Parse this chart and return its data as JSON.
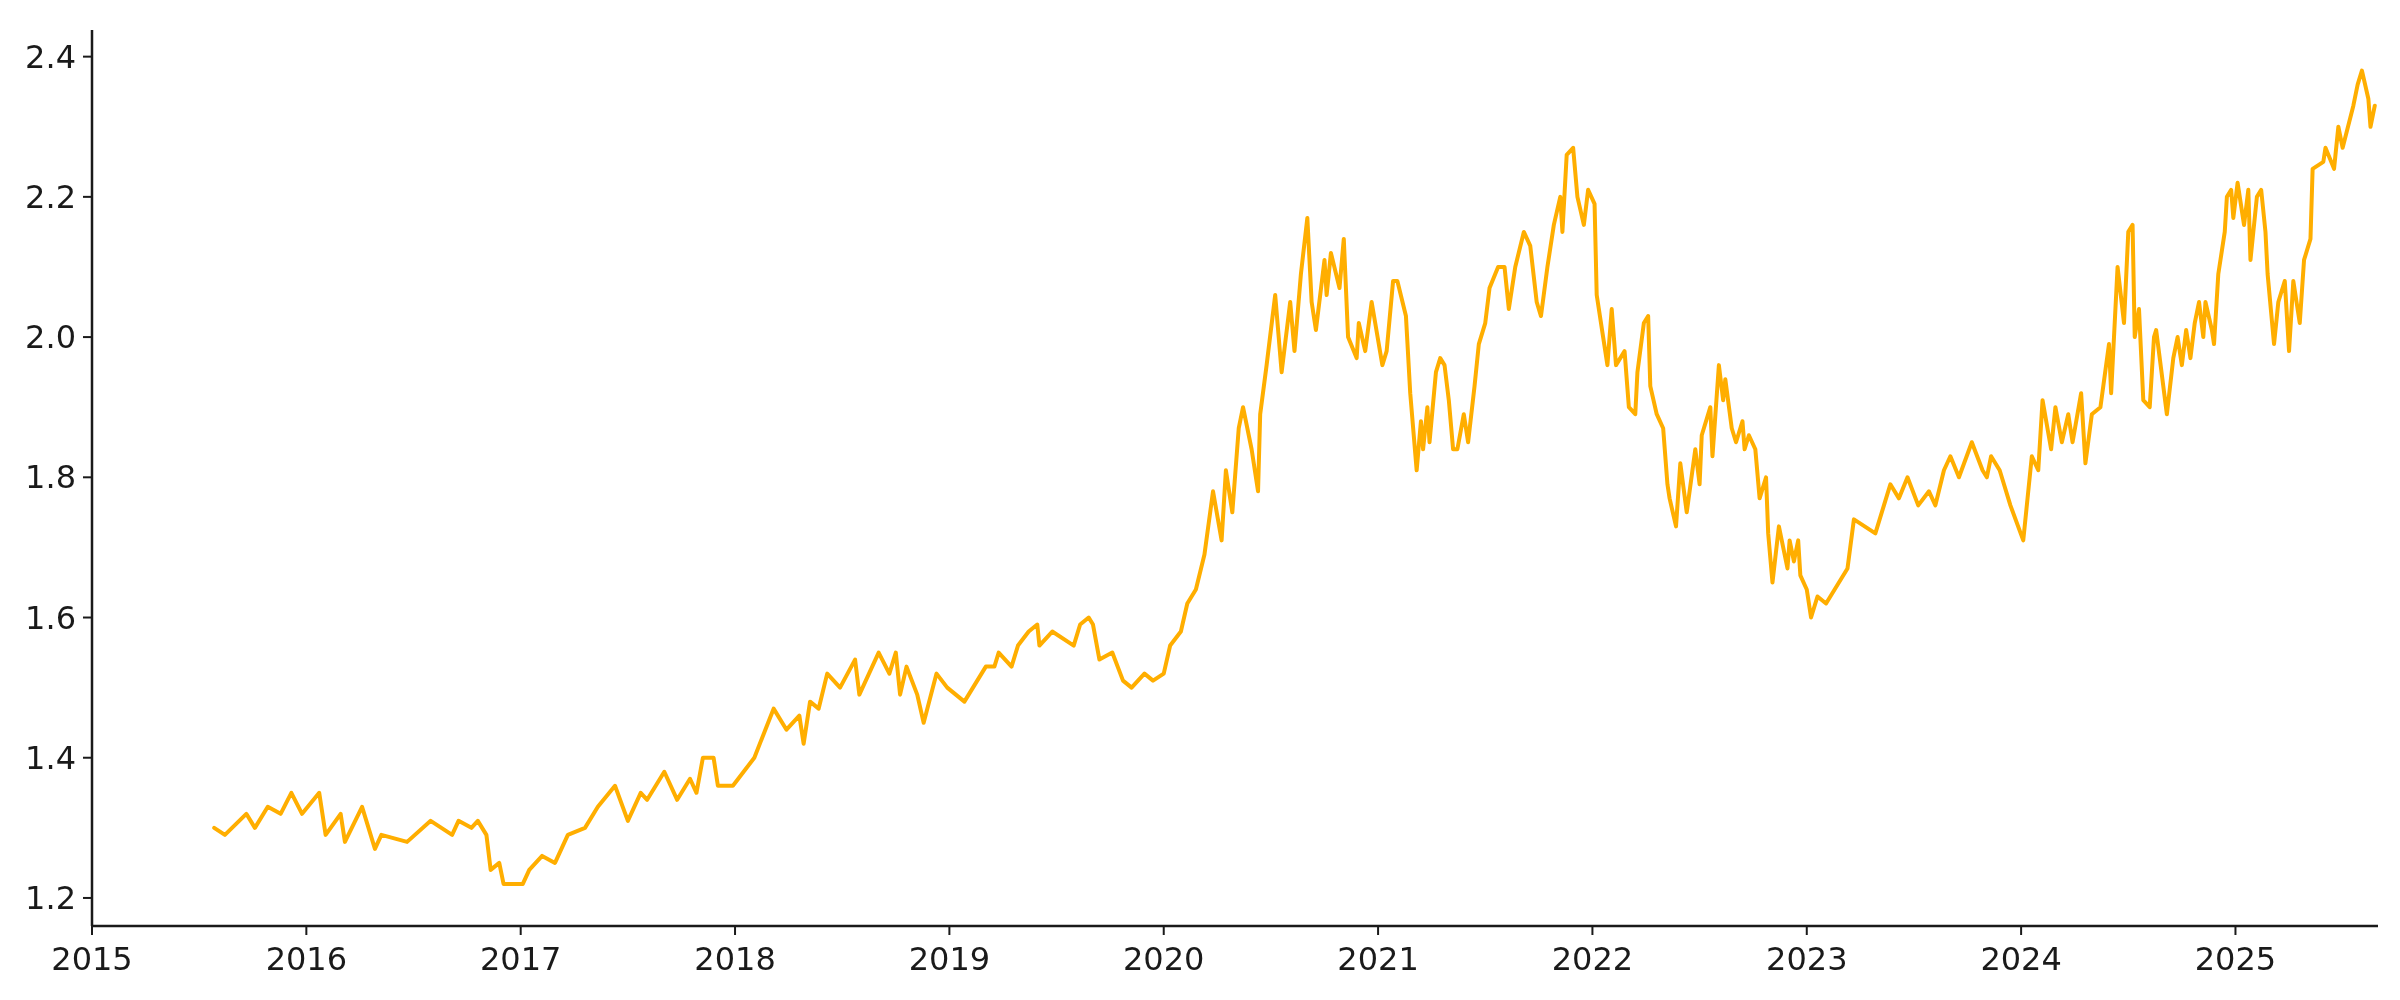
{
  "chart_data": {
    "type": "line",
    "xlim": [
      2015,
      2025.665
    ],
    "xticks": [
      2015,
      2016,
      2017,
      2018,
      2019,
      2020,
      2021,
      2022,
      2023,
      2024,
      2025
    ],
    "ylim": [
      1.16,
      2.438
    ],
    "yticks": [
      {
        "value": 1.2,
        "label": "1.2"
      },
      {
        "value": 1.4,
        "label": "1.4"
      },
      {
        "value": 1.6,
        "label": "1.6"
      },
      {
        "value": 1.8,
        "label": "1.8"
      },
      {
        "value": 2.0,
        "label": "2.0"
      },
      {
        "value": 2.2,
        "label": "2.2"
      },
      {
        "value": 2.4,
        "label": "2.4"
      }
    ],
    "grid": false,
    "marker": "none",
    "line_style": "solid",
    "series": [
      {
        "color": "#ffae00",
        "x": [
          2015.57,
          2015.62,
          2015.72,
          2015.76,
          2015.82,
          2015.88,
          2015.93,
          2015.98,
          2016.06,
          2016.09,
          2016.16,
          2016.18,
          2016.26,
          2016.32,
          2016.35,
          2016.47,
          2016.58,
          2016.68,
          2016.71,
          2016.77,
          2016.8,
          2016.84,
          2016.86,
          2016.9,
          2016.92,
          2017.01,
          2017.04,
          2017.1,
          2017.16,
          2017.22,
          2017.3,
          2017.36,
          2017.44,
          2017.5,
          2017.56,
          2017.59,
          2017.67,
          2017.73,
          2017.79,
          2017.82,
          2017.85,
          2017.9,
          2017.92,
          2017.99,
          2018.09,
          2018.18,
          2018.24,
          2018.3,
          2018.32,
          2018.35,
          2018.39,
          2018.43,
          2018.49,
          2018.56,
          2018.58,
          2018.67,
          2018.72,
          2018.75,
          2018.77,
          2018.8,
          2018.85,
          2018.88,
          2018.94,
          2018.99,
          2019.07,
          2019.11,
          2019.17,
          2019.21,
          2019.23,
          2019.29,
          2019.32,
          2019.37,
          2019.41,
          2019.42,
          2019.48,
          2019.58,
          2019.61,
          2019.65,
          2019.67,
          2019.7,
          2019.76,
          2019.81,
          2019.85,
          2019.91,
          2019.95,
          2020.0,
          2020.03,
          2020.08,
          2020.11,
          2020.15,
          2020.19,
          2020.23,
          2020.27,
          2020.29,
          2020.32,
          2020.35,
          2020.37,
          2020.41,
          2020.44,
          2020.45,
          2020.48,
          2020.52,
          2020.55,
          2020.59,
          2020.61,
          2020.64,
          2020.67,
          2020.69,
          2020.71,
          2020.75,
          2020.76,
          2020.78,
          2020.82,
          2020.84,
          2020.86,
          2020.9,
          2020.91,
          2020.94,
          2020.97,
          2021.02,
          2021.04,
          2021.07,
          2021.09,
          2021.13,
          2021.15,
          2021.18,
          2021.2,
          2021.21,
          2021.23,
          2021.24,
          2021.27,
          2021.29,
          2021.31,
          2021.33,
          2021.35,
          2021.37,
          2021.4,
          2021.42,
          2021.45,
          2021.47,
          2021.5,
          2021.52,
          2021.56,
          2021.59,
          2021.61,
          2021.64,
          2021.68,
          2021.71,
          2021.74,
          2021.76,
          2021.79,
          2021.82,
          2021.85,
          2021.86,
          2021.88,
          2021.91,
          2021.93,
          2021.96,
          2021.98,
          2022.01,
          2022.02,
          2022.05,
          2022.07,
          2022.09,
          2022.11,
          2022.15,
          2022.17,
          2022.2,
          2022.21,
          2022.24,
          2022.26,
          2022.27,
          2022.3,
          2022.33,
          2022.35,
          2022.36,
          2022.39,
          2022.41,
          2022.44,
          2022.48,
          2022.5,
          2022.51,
          2022.55,
          2022.56,
          2022.59,
          2022.61,
          2022.62,
          2022.65,
          2022.67,
          2022.7,
          2022.71,
          2022.73,
          2022.76,
          2022.78,
          2022.81,
          2022.82,
          2022.84,
          2022.87,
          2022.91,
          2022.92,
          2022.94,
          2022.96,
          2022.97,
          2023.0,
          2023.02,
          2023.05,
          2023.09,
          2023.13,
          2023.19,
          2023.22,
          2023.27,
          2023.32,
          2023.36,
          2023.39,
          2023.43,
          2023.47,
          2023.52,
          2023.57,
          2023.6,
          2023.64,
          2023.67,
          2023.71,
          2023.77,
          2023.82,
          2023.84,
          2023.86,
          2023.9,
          2023.95,
          2024.01,
          2024.05,
          2024.08,
          2024.1,
          2024.14,
          2024.16,
          2024.19,
          2024.22,
          2024.24,
          2024.28,
          2024.3,
          2024.33,
          2024.37,
          2024.41,
          2024.42,
          2024.45,
          2024.48,
          2024.5,
          2024.52,
          2024.53,
          2024.55,
          2024.57,
          2024.6,
          2024.62,
          2024.63,
          2024.68,
          2024.71,
          2024.73,
          2024.75,
          2024.77,
          2024.79,
          2024.81,
          2024.83,
          2024.85,
          2024.86,
          2024.89,
          2024.9,
          2024.92,
          2024.95,
          2024.96,
          2024.98,
          2024.99,
          2025.01,
          2025.04,
          2025.06,
          2025.07,
          2025.1,
          2025.12,
          2025.14,
          2025.15,
          2025.18,
          2025.2,
          2025.23,
          2025.25,
          2025.27,
          2025.3,
          2025.32,
          2025.35,
          2025.36,
          2025.41,
          2025.42,
          2025.46,
          2025.48,
          2025.5,
          2025.55,
          2025.57,
          2025.59,
          2025.62,
          2025.63,
          2025.65
        ],
        "values": [
          1.3,
          1.29,
          1.32,
          1.3,
          1.33,
          1.32,
          1.35,
          1.32,
          1.35,
          1.29,
          1.32,
          1.28,
          1.33,
          1.27,
          1.29,
          1.28,
          1.31,
          1.29,
          1.31,
          1.3,
          1.31,
          1.29,
          1.24,
          1.25,
          1.22,
          1.22,
          1.24,
          1.26,
          1.25,
          1.29,
          1.3,
          1.33,
          1.36,
          1.31,
          1.35,
          1.34,
          1.38,
          1.34,
          1.37,
          1.35,
          1.4,
          1.4,
          1.36,
          1.36,
          1.4,
          1.47,
          1.44,
          1.46,
          1.42,
          1.48,
          1.47,
          1.52,
          1.5,
          1.54,
          1.49,
          1.55,
          1.52,
          1.55,
          1.49,
          1.53,
          1.49,
          1.45,
          1.52,
          1.5,
          1.48,
          1.5,
          1.53,
          1.53,
          1.55,
          1.53,
          1.56,
          1.58,
          1.59,
          1.56,
          1.58,
          1.56,
          1.59,
          1.6,
          1.59,
          1.54,
          1.55,
          1.51,
          1.5,
          1.52,
          1.51,
          1.52,
          1.56,
          1.58,
          1.62,
          1.64,
          1.69,
          1.78,
          1.71,
          1.81,
          1.75,
          1.87,
          1.9,
          1.84,
          1.78,
          1.89,
          1.96,
          2.06,
          1.95,
          2.05,
          1.98,
          2.09,
          2.17,
          2.05,
          2.01,
          2.11,
          2.06,
          2.12,
          2.07,
          2.14,
          2.0,
          1.97,
          2.02,
          1.98,
          2.05,
          1.96,
          1.98,
          2.08,
          2.08,
          2.03,
          1.92,
          1.81,
          1.88,
          1.84,
          1.9,
          1.85,
          1.95,
          1.97,
          1.96,
          1.91,
          1.84,
          1.84,
          1.89,
          1.85,
          1.93,
          1.99,
          2.02,
          2.07,
          2.1,
          2.1,
          2.04,
          2.1,
          2.15,
          2.13,
          2.05,
          2.03,
          2.1,
          2.16,
          2.2,
          2.15,
          2.26,
          2.27,
          2.2,
          2.16,
          2.21,
          2.19,
          2.06,
          2.0,
          1.96,
          2.04,
          1.96,
          1.98,
          1.9,
          1.89,
          1.95,
          2.02,
          2.03,
          1.93,
          1.89,
          1.87,
          1.79,
          1.77,
          1.73,
          1.82,
          1.75,
          1.84,
          1.79,
          1.86,
          1.9,
          1.83,
          1.96,
          1.91,
          1.94,
          1.87,
          1.85,
          1.88,
          1.84,
          1.86,
          1.84,
          1.77,
          1.8,
          1.72,
          1.65,
          1.73,
          1.67,
          1.71,
          1.68,
          1.71,
          1.66,
          1.64,
          1.6,
          1.63,
          1.62,
          1.64,
          1.67,
          1.74,
          1.73,
          1.72,
          1.76,
          1.79,
          1.77,
          1.8,
          1.76,
          1.78,
          1.76,
          1.81,
          1.83,
          1.8,
          1.85,
          1.81,
          1.8,
          1.83,
          1.81,
          1.76,
          1.71,
          1.83,
          1.81,
          1.91,
          1.84,
          1.9,
          1.85,
          1.89,
          1.85,
          1.92,
          1.82,
          1.89,
          1.9,
          1.99,
          1.92,
          2.1,
          2.02,
          2.15,
          2.16,
          2.0,
          2.04,
          1.91,
          1.9,
          2.0,
          2.01,
          1.89,
          1.97,
          2.0,
          1.96,
          2.01,
          1.97,
          2.02,
          2.05,
          2.0,
          2.05,
          2.01,
          1.99,
          2.09,
          2.15,
          2.2,
          2.21,
          2.17,
          2.22,
          2.16,
          2.21,
          2.11,
          2.2,
          2.21,
          2.15,
          2.09,
          1.99,
          2.05,
          2.08,
          1.98,
          2.08,
          2.02,
          2.11,
          2.14,
          2.24,
          2.25,
          2.27,
          2.24,
          2.3,
          2.27,
          2.33,
          2.36,
          2.38,
          2.34,
          2.3,
          2.33
        ]
      }
    ]
  }
}
